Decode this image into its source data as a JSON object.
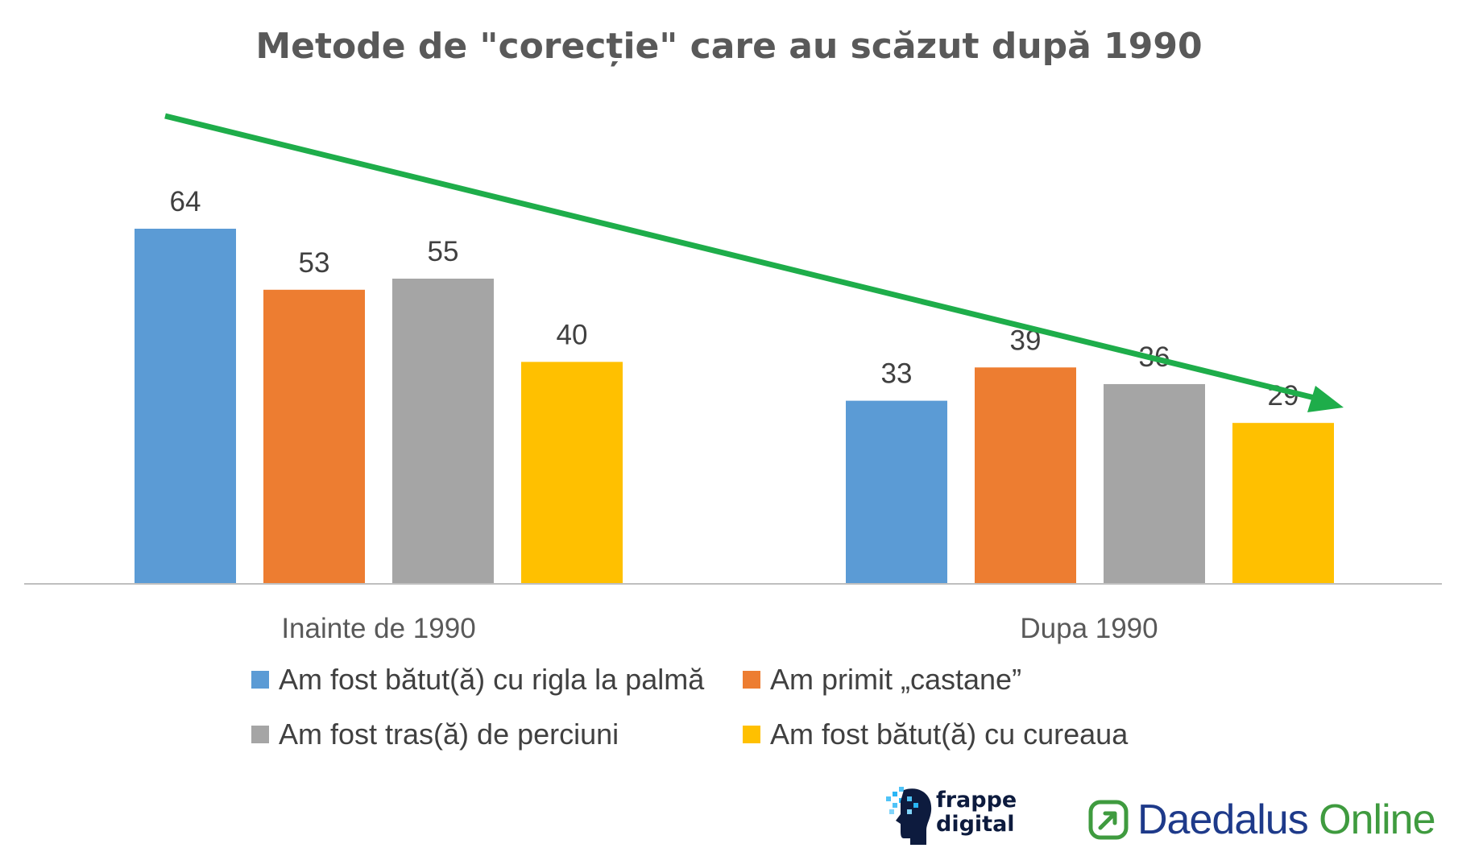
{
  "chart_data": {
    "type": "bar",
    "title": "Metode de \"corecție\" care au scăzut după  1990",
    "categories": [
      "Inainte de 1990",
      "Dupa 1990"
    ],
    "series": [
      {
        "name": "Am fost bătut(ă) cu rigla la palmă",
        "values": [
          64,
          33
        ],
        "color": "#5B9BD5"
      },
      {
        "name": "Am primit „castane”",
        "values": [
          53,
          39
        ],
        "color": "#ED7D31"
      },
      {
        "name": "Am fost tras(ă) de perciuni",
        "values": [
          55,
          36
        ],
        "color": "#A5A5A5"
      },
      {
        "name": "Am fost bătut(ă) cu cureaua",
        "values": [
          40,
          29
        ],
        "color": "#FFC000"
      }
    ],
    "ylim": [
      0,
      64
    ],
    "grid": false,
    "legend_position": "bottom",
    "annotation": {
      "type": "arrow",
      "direction": "down-right",
      "color": "#1EAD4A"
    }
  },
  "logos": {
    "frappe": {
      "line1": "frappe",
      "line2": "digital",
      "icon": "frappe-head-icon"
    },
    "daedalus": {
      "part1": "Daedalus",
      "part2": "Online",
      "icon": "daedalus-arrow-icon"
    }
  }
}
